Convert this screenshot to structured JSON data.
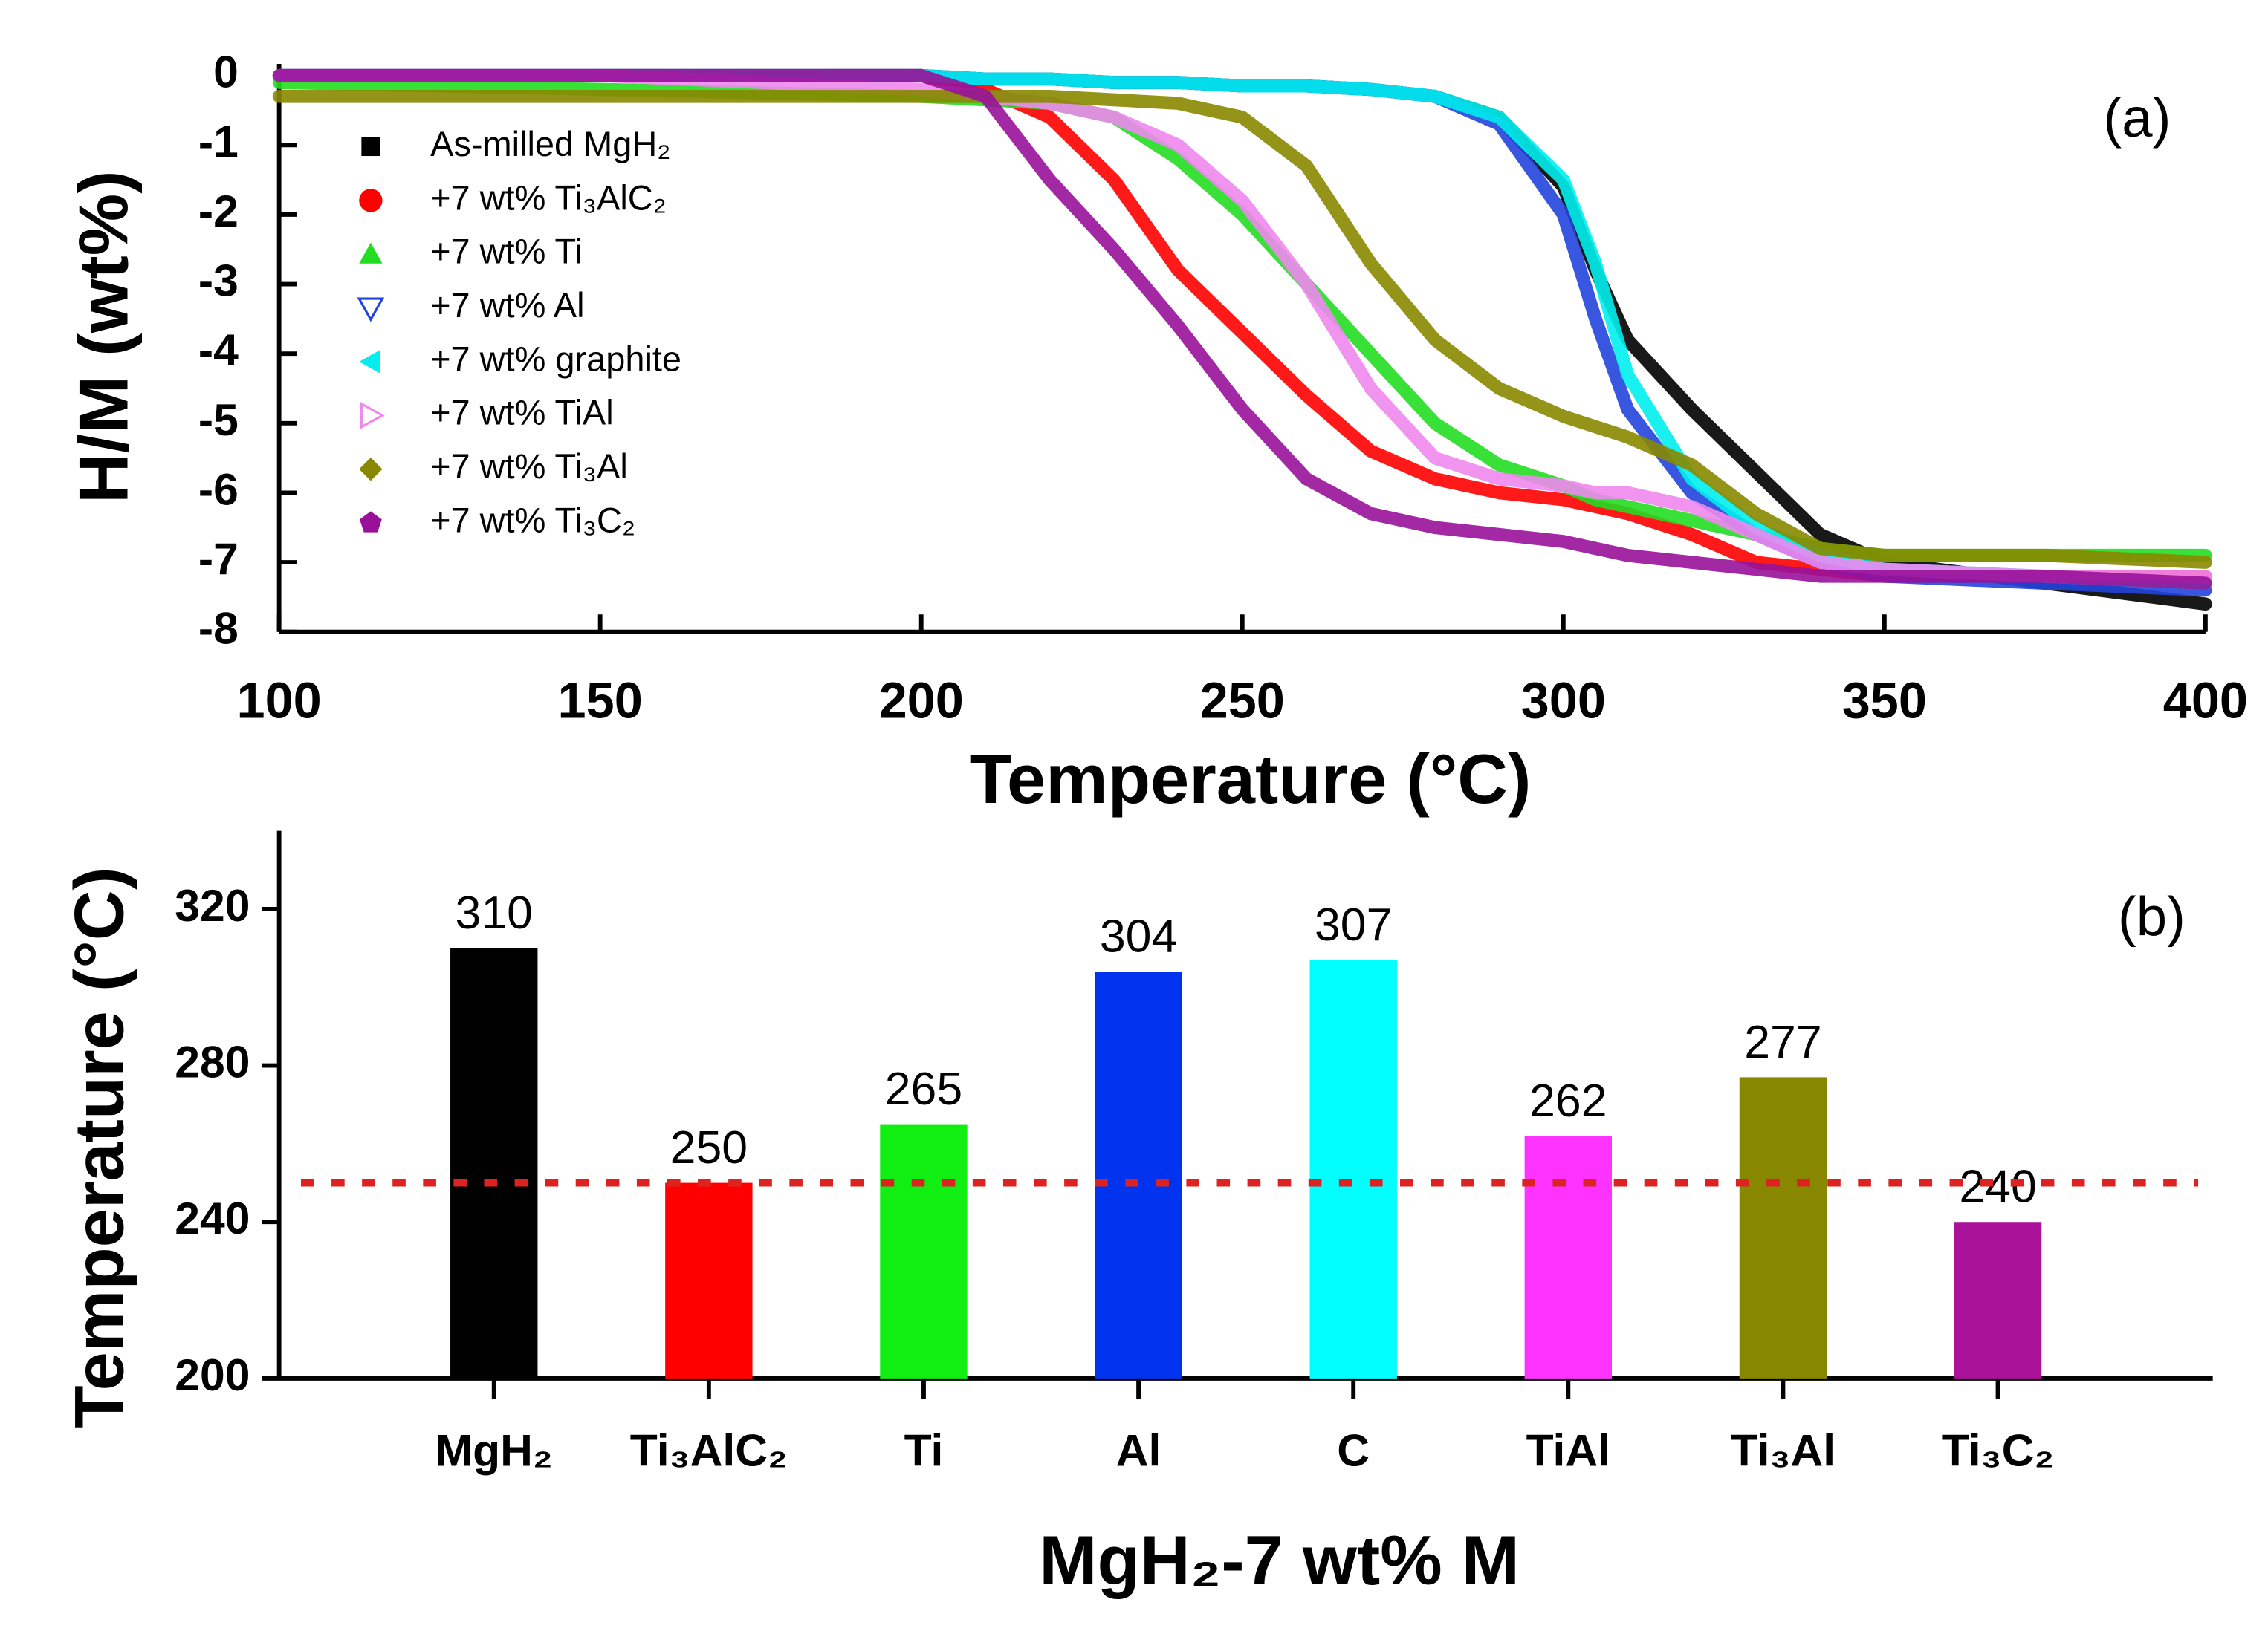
{
  "chart_data": [
    {
      "type": "line",
      "xlabel": "Temperature (°C)",
      "ylabel": "H/M (wt%)",
      "annotation": "(a)",
      "xlim": [
        100,
        400
      ],
      "ylim": [
        -8,
        0
      ],
      "xticks": [
        100,
        150,
        200,
        250,
        300,
        350,
        400
      ],
      "yticks": [
        0,
        -1,
        -2,
        -3,
        -4,
        -5,
        -6,
        -7,
        -8
      ],
      "x": [
        100,
        150,
        200,
        210,
        220,
        230,
        240,
        250,
        260,
        270,
        280,
        290,
        300,
        305,
        310,
        320,
        330,
        340,
        350,
        375,
        400
      ],
      "series": [
        {
          "name": "As-milled MgH₂",
          "color": "#000000",
          "marker": "square",
          "values": [
            0,
            0,
            0,
            -0.05,
            -0.05,
            -0.1,
            -0.1,
            -0.15,
            -0.15,
            -0.2,
            -0.3,
            -0.6,
            -1.6,
            -2.8,
            -3.8,
            -4.8,
            -5.7,
            -6.6,
            -7.0,
            -7.3,
            -7.6
          ]
        },
        {
          "name": "+7 wt% Ti₃AlC₂",
          "color": "#ff0000",
          "marker": "circle",
          "values": [
            0,
            0,
            0,
            -0.2,
            -0.6,
            -1.5,
            -2.8,
            -3.7,
            -4.6,
            -5.4,
            -5.8,
            -6.0,
            -6.1,
            -6.2,
            -6.3,
            -6.6,
            -7.0,
            -7.1,
            -7.2,
            -7.2,
            -7.2
          ]
        },
        {
          "name": "+7 wt% Ti",
          "color": "#22dd22",
          "marker": "triangle-up",
          "values": [
            -0.1,
            -0.2,
            -0.3,
            -0.35,
            -0.4,
            -0.6,
            -1.2,
            -2.0,
            -3.0,
            -4.0,
            -5.0,
            -5.6,
            -5.9,
            -6.1,
            -6.2,
            -6.4,
            -6.6,
            -6.8,
            -6.9,
            -6.9,
            -6.9
          ]
        },
        {
          "name": "+7 wt% Al",
          "color": "#2244dd",
          "marker": "triangle-down-open",
          "values": [
            0,
            0,
            0,
            -0.05,
            -0.05,
            -0.1,
            -0.1,
            -0.15,
            -0.15,
            -0.2,
            -0.3,
            -0.7,
            -2.0,
            -3.5,
            -4.8,
            -6.0,
            -6.6,
            -7.0,
            -7.2,
            -7.3,
            -7.4
          ]
        },
        {
          "name": "+7 wt% graphite",
          "color": "#00eeee",
          "marker": "triangle-left",
          "values": [
            0,
            0,
            0,
            -0.05,
            -0.05,
            -0.1,
            -0.1,
            -0.15,
            -0.15,
            -0.2,
            -0.3,
            -0.6,
            -1.5,
            -2.7,
            -4.3,
            -5.8,
            -6.5,
            -6.9,
            -7.1,
            -7.2,
            -7.3
          ]
        },
        {
          "name": "+7 wt% TiAl",
          "color": "#ee88ee",
          "marker": "triangle-right-open",
          "values": [
            0,
            0,
            -0.2,
            -0.3,
            -0.4,
            -0.6,
            -1.0,
            -1.8,
            -3.0,
            -4.5,
            -5.5,
            -5.8,
            -5.9,
            -6.0,
            -6.0,
            -6.2,
            -6.6,
            -7.0,
            -7.1,
            -7.2,
            -7.2
          ]
        },
        {
          "name": "+7 wt% Ti₃Al",
          "color": "#888800",
          "marker": "diamond",
          "values": [
            -0.3,
            -0.3,
            -0.3,
            -0.3,
            -0.3,
            -0.35,
            -0.4,
            -0.6,
            -1.3,
            -2.7,
            -3.8,
            -4.5,
            -4.9,
            -5.05,
            -5.2,
            -5.6,
            -6.3,
            -6.8,
            -6.9,
            -6.9,
            -7.0
          ]
        },
        {
          "name": "+7 wt% Ti₃C₂",
          "color": "#991199",
          "marker": "pentagon",
          "values": [
            0,
            0,
            0,
            -0.3,
            -1.5,
            -2.5,
            -3.6,
            -4.8,
            -5.8,
            -6.3,
            -6.5,
            -6.6,
            -6.7,
            -6.8,
            -6.9,
            -7.0,
            -7.1,
            -7.2,
            -7.2,
            -7.2,
            -7.3
          ]
        }
      ]
    },
    {
      "type": "bar",
      "xlabel": "MgH₂-7 wt% M",
      "ylabel": "Temperature (°C)",
      "annotation": "(b)",
      "ylim": [
        200,
        340
      ],
      "yticks": [
        200,
        240,
        280,
        320
      ],
      "categories": [
        "MgH₂",
        "Ti₃AlC₂",
        "Ti",
        "Al",
        "C",
        "TiAl",
        "Ti₃Al",
        "Ti₃C₂"
      ],
      "values": [
        310,
        250,
        265,
        304,
        307,
        262,
        277,
        240
      ],
      "colors": [
        "#000000",
        "#ff0000",
        "#11ee11",
        "#0033ee",
        "#00ffff",
        "#ff33ff",
        "#888800",
        "#aa1199"
      ],
      "reference_line": 250,
      "reference_color": "#dd2222"
    }
  ]
}
